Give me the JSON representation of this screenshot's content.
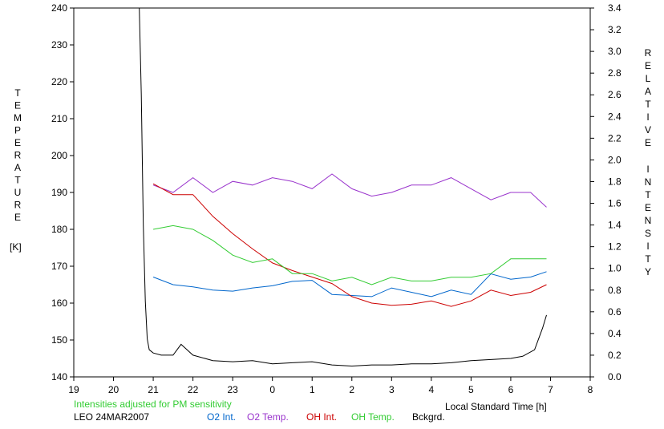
{
  "chart_data": {
    "type": "line",
    "xlabel": "Local Standard Time [h]",
    "y_left_label": [
      "T",
      "E",
      "M",
      "P",
      "E",
      "R",
      "A",
      "T",
      "U",
      "R",
      "E"
    ],
    "y_left_unit": "[K]",
    "y_right_label_1": [
      "R",
      "E",
      "L",
      "A",
      "T",
      "I",
      "V",
      "E"
    ],
    "y_right_label_2": [
      "I",
      "N",
      "T",
      "E",
      "N",
      "S",
      "I",
      "T",
      "Y"
    ],
    "x_ticks": [
      "19",
      "20",
      "21",
      "22",
      "23",
      "0",
      "1",
      "2",
      "3",
      "4",
      "5",
      "6",
      "7",
      "8"
    ],
    "y_left_ticks": [
      "140",
      "150",
      "160",
      "170",
      "180",
      "190",
      "200",
      "210",
      "220",
      "230",
      "240"
    ],
    "y_right_ticks": [
      "0.0",
      "0.2",
      "0.4",
      "0.6",
      "0.8",
      "1.0",
      "1.2",
      "1.4",
      "1.6",
      "1.8",
      "2.0",
      "2.2",
      "2.4",
      "2.6",
      "2.8",
      "3.0",
      "3.2",
      "3.4"
    ],
    "xlim": [
      19,
      32
    ],
    "ylim_left": [
      140,
      240
    ],
    "ylim_right": [
      0.0,
      3.4
    ],
    "note": "Intensities adjusted for PM sensitivity",
    "station": "LEO 24MAR2007",
    "colors": {
      "o2_int": "#0066cc",
      "o2_temp": "#9933cc",
      "oh_int": "#cc0000",
      "oh_temp": "#33cc33",
      "bckgrd": "#000000",
      "note": "#33cc33"
    },
    "series": [
      {
        "name": "O2 Int.",
        "axis": "right",
        "color": "#0066cc",
        "x": [
          21.0,
          21.5,
          22.0,
          22.5,
          23.0,
          23.5,
          24.0,
          24.5,
          25.0,
          25.5,
          26.0,
          26.5,
          27.0,
          27.5,
          28.0,
          28.5,
          29.0,
          29.5,
          30.0,
          30.5,
          30.9
        ],
        "y": [
          0.92,
          0.85,
          0.83,
          0.8,
          0.79,
          0.82,
          0.84,
          0.88,
          0.89,
          0.76,
          0.75,
          0.74,
          0.82,
          0.78,
          0.74,
          0.8,
          0.76,
          0.95,
          0.9,
          0.92,
          0.97
        ]
      },
      {
        "name": "O2 Temp.",
        "axis": "left",
        "color": "#9933cc",
        "x": [
          21.0,
          21.5,
          22.0,
          22.5,
          23.0,
          23.5,
          24.0,
          24.5,
          25.0,
          25.5,
          26.0,
          26.5,
          27.0,
          27.5,
          28.0,
          28.5,
          29.0,
          29.5,
          30.0,
          30.5,
          30.9
        ],
        "y": [
          192,
          190,
          194,
          190,
          193,
          192,
          194,
          193,
          191,
          195,
          191,
          189,
          190,
          192,
          192,
          194,
          191,
          188,
          190,
          190,
          186
        ]
      },
      {
        "name": "OH Int.",
        "axis": "right",
        "color": "#cc0000",
        "x": [
          21.0,
          21.5,
          22.0,
          22.5,
          23.0,
          23.5,
          24.0,
          24.5,
          25.0,
          25.5,
          26.0,
          26.5,
          27.0,
          27.5,
          28.0,
          28.5,
          29.0,
          29.5,
          30.0,
          30.5,
          30.9
        ],
        "y": [
          1.78,
          1.68,
          1.68,
          1.48,
          1.32,
          1.18,
          1.05,
          0.98,
          0.92,
          0.86,
          0.74,
          0.68,
          0.66,
          0.67,
          0.7,
          0.65,
          0.7,
          0.8,
          0.75,
          0.78,
          0.85
        ]
      },
      {
        "name": "OH Temp.",
        "axis": "left",
        "color": "#33cc33",
        "x": [
          21.0,
          21.5,
          22.0,
          22.5,
          23.0,
          23.5,
          24.0,
          24.5,
          25.0,
          25.5,
          26.0,
          26.5,
          27.0,
          27.5,
          28.0,
          28.5,
          29.0,
          29.5,
          30.0,
          30.5,
          30.9
        ],
        "y": [
          180,
          181,
          180,
          177,
          173,
          171,
          172,
          168,
          168,
          166,
          167,
          165,
          167,
          166,
          166,
          167,
          167,
          168,
          172,
          172,
          172
        ]
      },
      {
        "name": "Bckgrd.",
        "axis": "right",
        "color": "#000000",
        "x": [
          20.65,
          20.7,
          20.75,
          20.8,
          20.85,
          20.9,
          21.0,
          21.2,
          21.5,
          21.7,
          22.0,
          22.5,
          23.0,
          23.5,
          24.0,
          24.5,
          25.0,
          25.5,
          26.0,
          26.5,
          27.0,
          27.5,
          28.0,
          28.5,
          29.0,
          29.5,
          30.0,
          30.3,
          30.6,
          30.8,
          30.9
        ],
        "y": [
          3.4,
          2.6,
          1.4,
          0.7,
          0.35,
          0.25,
          0.22,
          0.2,
          0.2,
          0.3,
          0.2,
          0.15,
          0.14,
          0.15,
          0.12,
          0.13,
          0.14,
          0.11,
          0.1,
          0.11,
          0.11,
          0.12,
          0.12,
          0.13,
          0.15,
          0.16,
          0.17,
          0.19,
          0.25,
          0.45,
          0.57
        ]
      }
    ]
  }
}
